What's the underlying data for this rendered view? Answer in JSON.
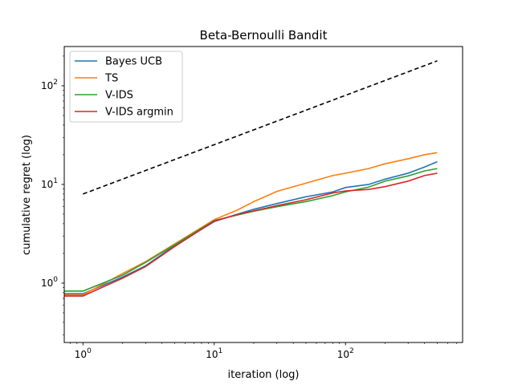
{
  "chart_data": {
    "type": "line",
    "title": "Beta-Bernoulli Bandit",
    "xlabel": "iteration (log)",
    "ylabel": "cumulative regret (log)",
    "xscale": "log",
    "yscale": "log",
    "xlim": [
      0.72,
      780
    ],
    "ylim": [
      0.25,
      250
    ],
    "x_ticks": [
      {
        "value": 1,
        "base": "10",
        "exp": "0"
      },
      {
        "value": 10,
        "base": "10",
        "exp": "1"
      },
      {
        "value": 100,
        "base": "10",
        "exp": "2"
      }
    ],
    "y_ticks": [
      {
        "value": 1,
        "base": "10",
        "exp": "0"
      },
      {
        "value": 10,
        "base": "10",
        "exp": "1"
      },
      {
        "value": 100,
        "base": "10",
        "exp": "2"
      }
    ],
    "legend_position": "top-left",
    "grid": false,
    "series": [
      {
        "name": "Bayes UCB",
        "color": "#1f77b4",
        "style": "solid",
        "points": [
          [
            0.72,
            0.78
          ],
          [
            1,
            0.78
          ],
          [
            2,
            1.15
          ],
          [
            3,
            1.5
          ],
          [
            5,
            2.4
          ],
          [
            10,
            4.2
          ],
          [
            15,
            5.0
          ],
          [
            20,
            5.6
          ],
          [
            30,
            6.4
          ],
          [
            50,
            7.5
          ],
          [
            80,
            8.4
          ],
          [
            100,
            9.3
          ],
          [
            150,
            10.0
          ],
          [
            200,
            11.3
          ],
          [
            300,
            13.0
          ],
          [
            400,
            15.0
          ],
          [
            500,
            17.0
          ]
        ]
      },
      {
        "name": "TS",
        "color": "#ff7f0e",
        "style": "solid",
        "points": [
          [
            0.72,
            0.76
          ],
          [
            1,
            0.76
          ],
          [
            2,
            1.25
          ],
          [
            3,
            1.65
          ],
          [
            5,
            2.5
          ],
          [
            10,
            4.4
          ],
          [
            15,
            5.5
          ],
          [
            20,
            6.7
          ],
          [
            30,
            8.5
          ],
          [
            50,
            10.3
          ],
          [
            80,
            12.3
          ],
          [
            100,
            13.0
          ],
          [
            150,
            14.5
          ],
          [
            200,
            16.2
          ],
          [
            300,
            18.2
          ],
          [
            400,
            20.0
          ],
          [
            500,
            21.0
          ]
        ]
      },
      {
        "name": "V-IDS",
        "color": "#2ca02c",
        "style": "solid",
        "points": [
          [
            0.72,
            0.83
          ],
          [
            1,
            0.83
          ],
          [
            2,
            1.2
          ],
          [
            3,
            1.62
          ],
          [
            5,
            2.45
          ],
          [
            10,
            4.3
          ],
          [
            15,
            4.9
          ],
          [
            20,
            5.35
          ],
          [
            30,
            5.95
          ],
          [
            50,
            6.7
          ],
          [
            80,
            7.7
          ],
          [
            100,
            8.4
          ],
          [
            150,
            9.4
          ],
          [
            200,
            10.8
          ],
          [
            300,
            12.2
          ],
          [
            400,
            13.7
          ],
          [
            500,
            14.5
          ]
        ]
      },
      {
        "name": "V-IDS argmin",
        "color": "#d62728",
        "style": "solid",
        "points": [
          [
            0.72,
            0.74
          ],
          [
            1,
            0.74
          ],
          [
            2,
            1.12
          ],
          [
            3,
            1.47
          ],
          [
            5,
            2.35
          ],
          [
            10,
            4.25
          ],
          [
            15,
            4.95
          ],
          [
            20,
            5.4
          ],
          [
            30,
            6.1
          ],
          [
            50,
            7.0
          ],
          [
            80,
            8.2
          ],
          [
            100,
            8.6
          ],
          [
            150,
            8.9
          ],
          [
            200,
            9.5
          ],
          [
            300,
            10.8
          ],
          [
            400,
            12.3
          ],
          [
            500,
            13.0
          ]
        ]
      },
      {
        "name": "",
        "color": "#000000",
        "style": "dashed",
        "points": [
          [
            1,
            8.0
          ],
          [
            500,
            178.9
          ]
        ]
      }
    ]
  }
}
